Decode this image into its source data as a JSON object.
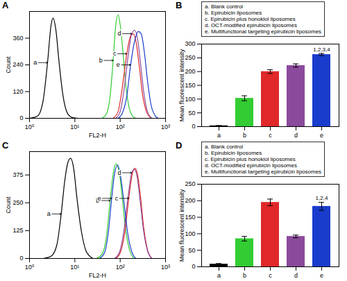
{
  "chart_data": [
    {
      "title": "A",
      "type": "line",
      "log": "x",
      "xlabel": "FL2-H",
      "ylabel": "Count",
      "xlim": [
        1,
        1000
      ],
      "xticks": [
        {
          "value": 1,
          "label": "10⁰"
        },
        {
          "value": 10,
          "label": "10¹"
        },
        {
          "value": 100,
          "label": "10²"
        },
        {
          "value": 1000,
          "label": "10³"
        }
      ],
      "ylim": [
        0,
        480
      ],
      "yticks": [
        0,
        120,
        240,
        360
      ],
      "series": [
        {
          "name": "a",
          "color": "#000000",
          "x": [
            1,
            1.5,
            2,
            2.5,
            3,
            3.3,
            3.8,
            4.5,
            5.5,
            7,
            9,
            12
          ],
          "values": [
            0,
            10,
            80,
            250,
            420,
            450,
            400,
            250,
            100,
            20,
            3,
            0
          ]
        },
        {
          "name": "b",
          "color": "#33cc33",
          "x": [
            40,
            50,
            60,
            70,
            80,
            90,
            100,
            115,
            130,
            150,
            180,
            220
          ],
          "values": [
            0,
            20,
            100,
            260,
            420,
            465,
            420,
            300,
            170,
            70,
            15,
            0
          ]
        },
        {
          "name": "c",
          "color": "#e0282a",
          "x": [
            70,
            90,
            110,
            140,
            170,
            195,
            225,
            265,
            310,
            380,
            480
          ],
          "values": [
            0,
            30,
            130,
            290,
            370,
            380,
            340,
            230,
            110,
            30,
            0
          ]
        },
        {
          "name": "d",
          "color": "#8b4a9c",
          "x": [
            80,
            100,
            120,
            150,
            180,
            210,
            240,
            280,
            330,
            400,
            500
          ],
          "values": [
            0,
            30,
            120,
            280,
            380,
            395,
            360,
            250,
            120,
            30,
            0
          ]
        },
        {
          "name": "e",
          "color": "#1a3ccc",
          "x": [
            90,
            110,
            140,
            170,
            210,
            250,
            290,
            340,
            400,
            480,
            600,
            700
          ],
          "values": [
            0,
            20,
            100,
            240,
            350,
            390,
            380,
            300,
            170,
            60,
            10,
            0
          ]
        }
      ]
    },
    {
      "title": "B",
      "type": "bar",
      "ylabel": "Mean fluorescent intensity",
      "categories": [
        "a",
        "b",
        "c",
        "d",
        "e"
      ],
      "values": [
        3,
        103,
        200,
        222,
        262
      ],
      "errors": [
        1,
        9,
        7,
        6,
        4
      ],
      "colors": [
        "#000000",
        "#33cc33",
        "#e0282a",
        "#8b4a9c",
        "#1a3ccc"
      ],
      "ylim": [
        0,
        300
      ],
      "yticks": [
        0,
        50,
        100,
        150,
        200,
        250,
        300
      ],
      "legend": "top-left",
      "legend_entries": [
        "a. Blank control",
        "b. Epirubicin liposomes",
        "c. Epirubicin plus honokiol liposomes",
        "d. OCT-modified epirubicin liposomes",
        "e. Multifunctional targeting epirubicin liposomes"
      ],
      "annotations": [
        {
          "category": "e",
          "text": "1,2,3,4"
        }
      ]
    },
    {
      "title": "C",
      "type": "line",
      "log": "x",
      "xlabel": "FL2-H",
      "ylabel": "Count",
      "xlim": [
        1,
        1000
      ],
      "xticks": [
        {
          "value": 1,
          "label": "10⁰"
        },
        {
          "value": 10,
          "label": "10¹"
        },
        {
          "value": 100,
          "label": "10²"
        },
        {
          "value": 1000,
          "label": "10³"
        }
      ],
      "ylim": [
        0,
        480
      ],
      "yticks": [
        0,
        125,
        250,
        375
      ],
      "series": [
        {
          "name": "a",
          "color": "#000000",
          "x": [
            2,
            3,
            4,
            5,
            6,
            7,
            8,
            9.5,
            11,
            14,
            18,
            25
          ],
          "values": [
            0,
            10,
            60,
            200,
            350,
            430,
            450,
            400,
            280,
            120,
            30,
            0
          ]
        },
        {
          "name": "b",
          "color": "#33cc33",
          "x": [
            30,
            40,
            50,
            60,
            70,
            80,
            95,
            110,
            130,
            160,
            200
          ],
          "values": [
            0,
            20,
            100,
            260,
            380,
            425,
            390,
            280,
            140,
            40,
            0
          ]
        },
        {
          "name": "c",
          "color": "#e0282a",
          "x": [
            80,
            100,
            125,
            155,
            185,
            210,
            240,
            280,
            330,
            400,
            500
          ],
          "values": [
            0,
            25,
            110,
            270,
            380,
            405,
            380,
            280,
            140,
            40,
            0
          ]
        },
        {
          "name": "d",
          "color": "#8b4a9c",
          "x": [
            75,
            95,
            120,
            150,
            180,
            205,
            235,
            275,
            325,
            400,
            500
          ],
          "values": [
            0,
            25,
            120,
            280,
            385,
            400,
            370,
            260,
            130,
            35,
            0
          ]
        },
        {
          "name": "e",
          "color": "#1a3ccc",
          "x": [
            35,
            45,
            55,
            65,
            75,
            88,
            100,
            120,
            145,
            180,
            220
          ],
          "values": [
            0,
            25,
            120,
            270,
            380,
            420,
            380,
            260,
            120,
            30,
            0
          ]
        }
      ]
    },
    {
      "title": "D",
      "type": "bar",
      "ylabel": "Mean fluorescent intensity",
      "categories": [
        "a",
        "b",
        "c",
        "d",
        "e"
      ],
      "values": [
        8,
        85,
        195,
        92,
        183
      ],
      "errors": [
        2,
        7,
        10,
        4,
        12
      ],
      "colors": [
        "#000000",
        "#33cc33",
        "#e0282a",
        "#8b4a9c",
        "#1a3ccc"
      ],
      "ylim": [
        0,
        250
      ],
      "yticks": [
        0,
        50,
        100,
        150,
        200,
        250
      ],
      "legend": "top-left",
      "legend_entries": [
        "a. Blank control",
        "b. Epirubicin liposomes",
        "c. Epirubicin plus honokiol liposomes",
        "d. OCT-modified epirubicin liposomes",
        "e. Multifunctional targeting epirubicin liposomes"
      ],
      "annotations": [
        {
          "category": "e",
          "text": "1,2,4"
        }
      ]
    }
  ]
}
